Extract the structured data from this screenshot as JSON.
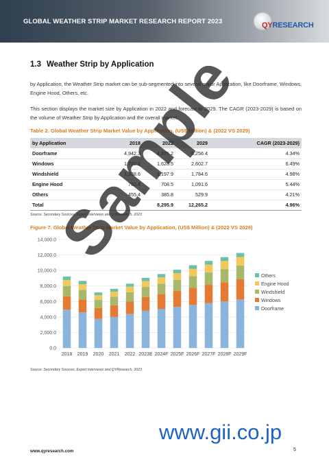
{
  "header": {
    "title": "GLOBAL WEATHER STRIP MARKET RESEARCH REPORT 2023",
    "logo_prefix": "QY",
    "logo_suffix": "RESEARCH"
  },
  "section": {
    "number": "1.3",
    "title": "Weather Strip by Application"
  },
  "paragraphs": [
    "by Application, the Weather Strip market can be sub-segmented into several major Application, like Doorframe, Windows, Engine Hood, Others, etc.",
    "This section displays the market size by Application in 2022 and forecast to 2029. The CAGR (2023-2029) is based on the volume of Weather Strip by Application and the overall market."
  ],
  "table": {
    "caption": "Table 2.  Global Weather Strip Market Value by Application, (US$ Million) & (2022 VS 2029)",
    "headers": [
      "by Application",
      "2018",
      "2022",
      "2029",
      "CAGR (2023-2029)"
    ],
    "rows": [
      [
        "Doorframe",
        "4,942.3",
        "4,375.2",
        "6,256.4",
        "4.34%"
      ],
      [
        "Windows",
        "1,720.2",
        "1,628.5",
        "2,602.7",
        "6.49%"
      ],
      [
        "Windshield",
        "1,338.6",
        "1,197.9",
        "1,784.6",
        "4.98%"
      ],
      [
        "Engine Hood",
        "762.4",
        "708.5",
        "1,091.6",
        "5.44%"
      ],
      [
        "Others",
        "455.4",
        "385.8",
        "529.9",
        "4.21%"
      ]
    ],
    "total": [
      "Total",
      "",
      "8,295.9",
      "12,265.2",
      "4.96%"
    ],
    "source": "Source: Secondary Sources, Expert Interviews and QYResearch, 2023"
  },
  "figure": {
    "caption": "Figure 7.  Global Weather Strip Market Value by Application, (US$ Million) & (2022 VS 2029)",
    "source": "Source: Secondary Sources, Expert Interviews and QYResearch, 2023"
  },
  "chart_data": {
    "type": "bar",
    "stacked": true,
    "categories": [
      "2018",
      "2019",
      "2020",
      "2021",
      "2022",
      "2023E",
      "2024F",
      "2025F",
      "2026F",
      "2027F",
      "2028F",
      "2029F"
    ],
    "series": [
      {
        "name": "Doorframe",
        "color": "#8ab4dc",
        "values": [
          4942,
          4600,
          3750,
          4000,
          4375,
          4800,
          5050,
          5300,
          5550,
          5800,
          6000,
          6256
        ]
      },
      {
        "name": "Windows",
        "color": "#e57a35",
        "values": [
          1720,
          1640,
          1400,
          1500,
          1629,
          1780,
          1900,
          2050,
          2200,
          2350,
          2480,
          2603
        ]
      },
      {
        "name": "Windshield",
        "color": "#a9b76a",
        "values": [
          1339,
          1260,
          1050,
          1120,
          1198,
          1300,
          1360,
          1450,
          1540,
          1620,
          1700,
          1785
        ]
      },
      {
        "name": "Engine Hood",
        "color": "#f2c85a",
        "values": [
          762,
          730,
          610,
          650,
          709,
          760,
          800,
          850,
          920,
          980,
          1040,
          1092
        ]
      },
      {
        "name": "Others",
        "color": "#6fc0a8",
        "values": [
          455,
          430,
          360,
          370,
          386,
          410,
          430,
          450,
          470,
          490,
          510,
          530
        ]
      }
    ],
    "yticks": [
      "0.0",
      "2,000.0",
      "4,000.0",
      "6,000.0",
      "8,000.0",
      "10,000.0",
      "12,000.0",
      "14,000.0"
    ],
    "ylim": [
      0,
      14000
    ],
    "legend_position": "right"
  },
  "watermark": "Sample",
  "gii_mark": "www.gii.co.jp",
  "footer": {
    "url": "www.qyresearch.com",
    "page": "5"
  }
}
